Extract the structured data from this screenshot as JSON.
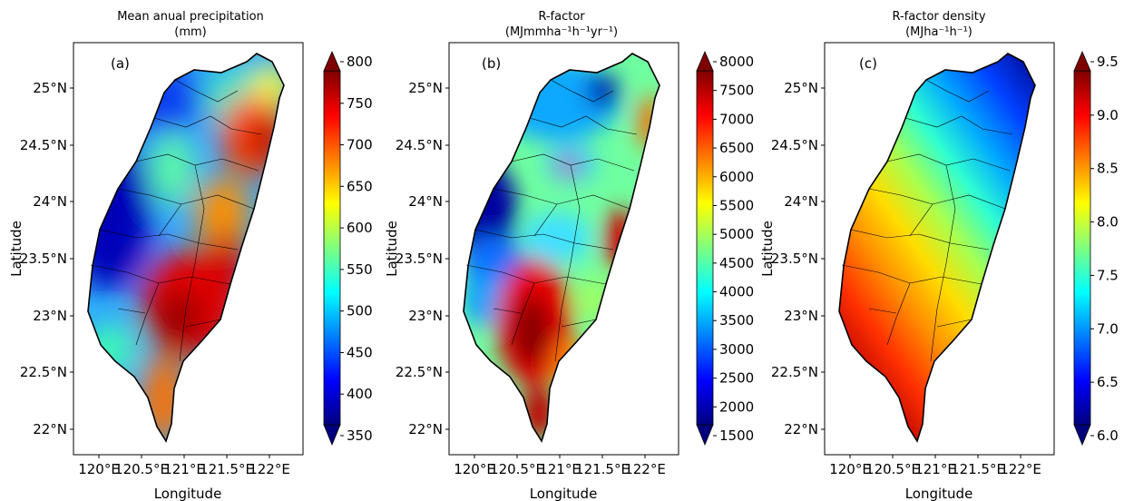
{
  "axes": {
    "x_ticks": [
      "120°E",
      "120.5°E",
      "121°E",
      "121.5°E",
      "122°E"
    ],
    "y_ticks": [
      "25°N",
      "24.5°N",
      "24°N",
      "23.5°N",
      "23°N",
      "22.5°N",
      "22°N"
    ],
    "xlabel": "Longitude",
    "ylabel": "Latitude"
  },
  "panels": [
    {
      "id": "a",
      "label": "(a)",
      "title": "Mean anual precipitation",
      "units": "(mm)",
      "colorbar_ticks": [
        "800",
        "750",
        "700",
        "650",
        "600",
        "550",
        "500",
        "450",
        "400",
        "350"
      ],
      "colorbar_range": [
        350,
        800
      ]
    },
    {
      "id": "b",
      "label": "(b)",
      "title": "R-factor",
      "units": "(MJmmha⁻¹h⁻¹yr⁻¹)",
      "colorbar_ticks": [
        "8000",
        "7500",
        "7000",
        "6500",
        "6000",
        "5500",
        "5000",
        "4500",
        "4000",
        "3500",
        "3000",
        "2500",
        "2000",
        "1500"
      ],
      "colorbar_range": [
        1500,
        8000
      ]
    },
    {
      "id": "c",
      "label": "(c)",
      "title": "R-factor density",
      "units": "(MJha⁻¹h⁻¹)",
      "colorbar_ticks": [
        "9.5",
        "9.0",
        "8.5",
        "8.0",
        "7.5",
        "7.0",
        "6.5",
        "6.0"
      ],
      "colorbar_range": [
        6.0,
        9.5
      ]
    }
  ],
  "colormap": [
    "#00007f",
    "#0000ff",
    "#007fff",
    "#00ffff",
    "#7fff7f",
    "#ffff00",
    "#ff7f00",
    "#ff0000",
    "#7f0000"
  ]
}
